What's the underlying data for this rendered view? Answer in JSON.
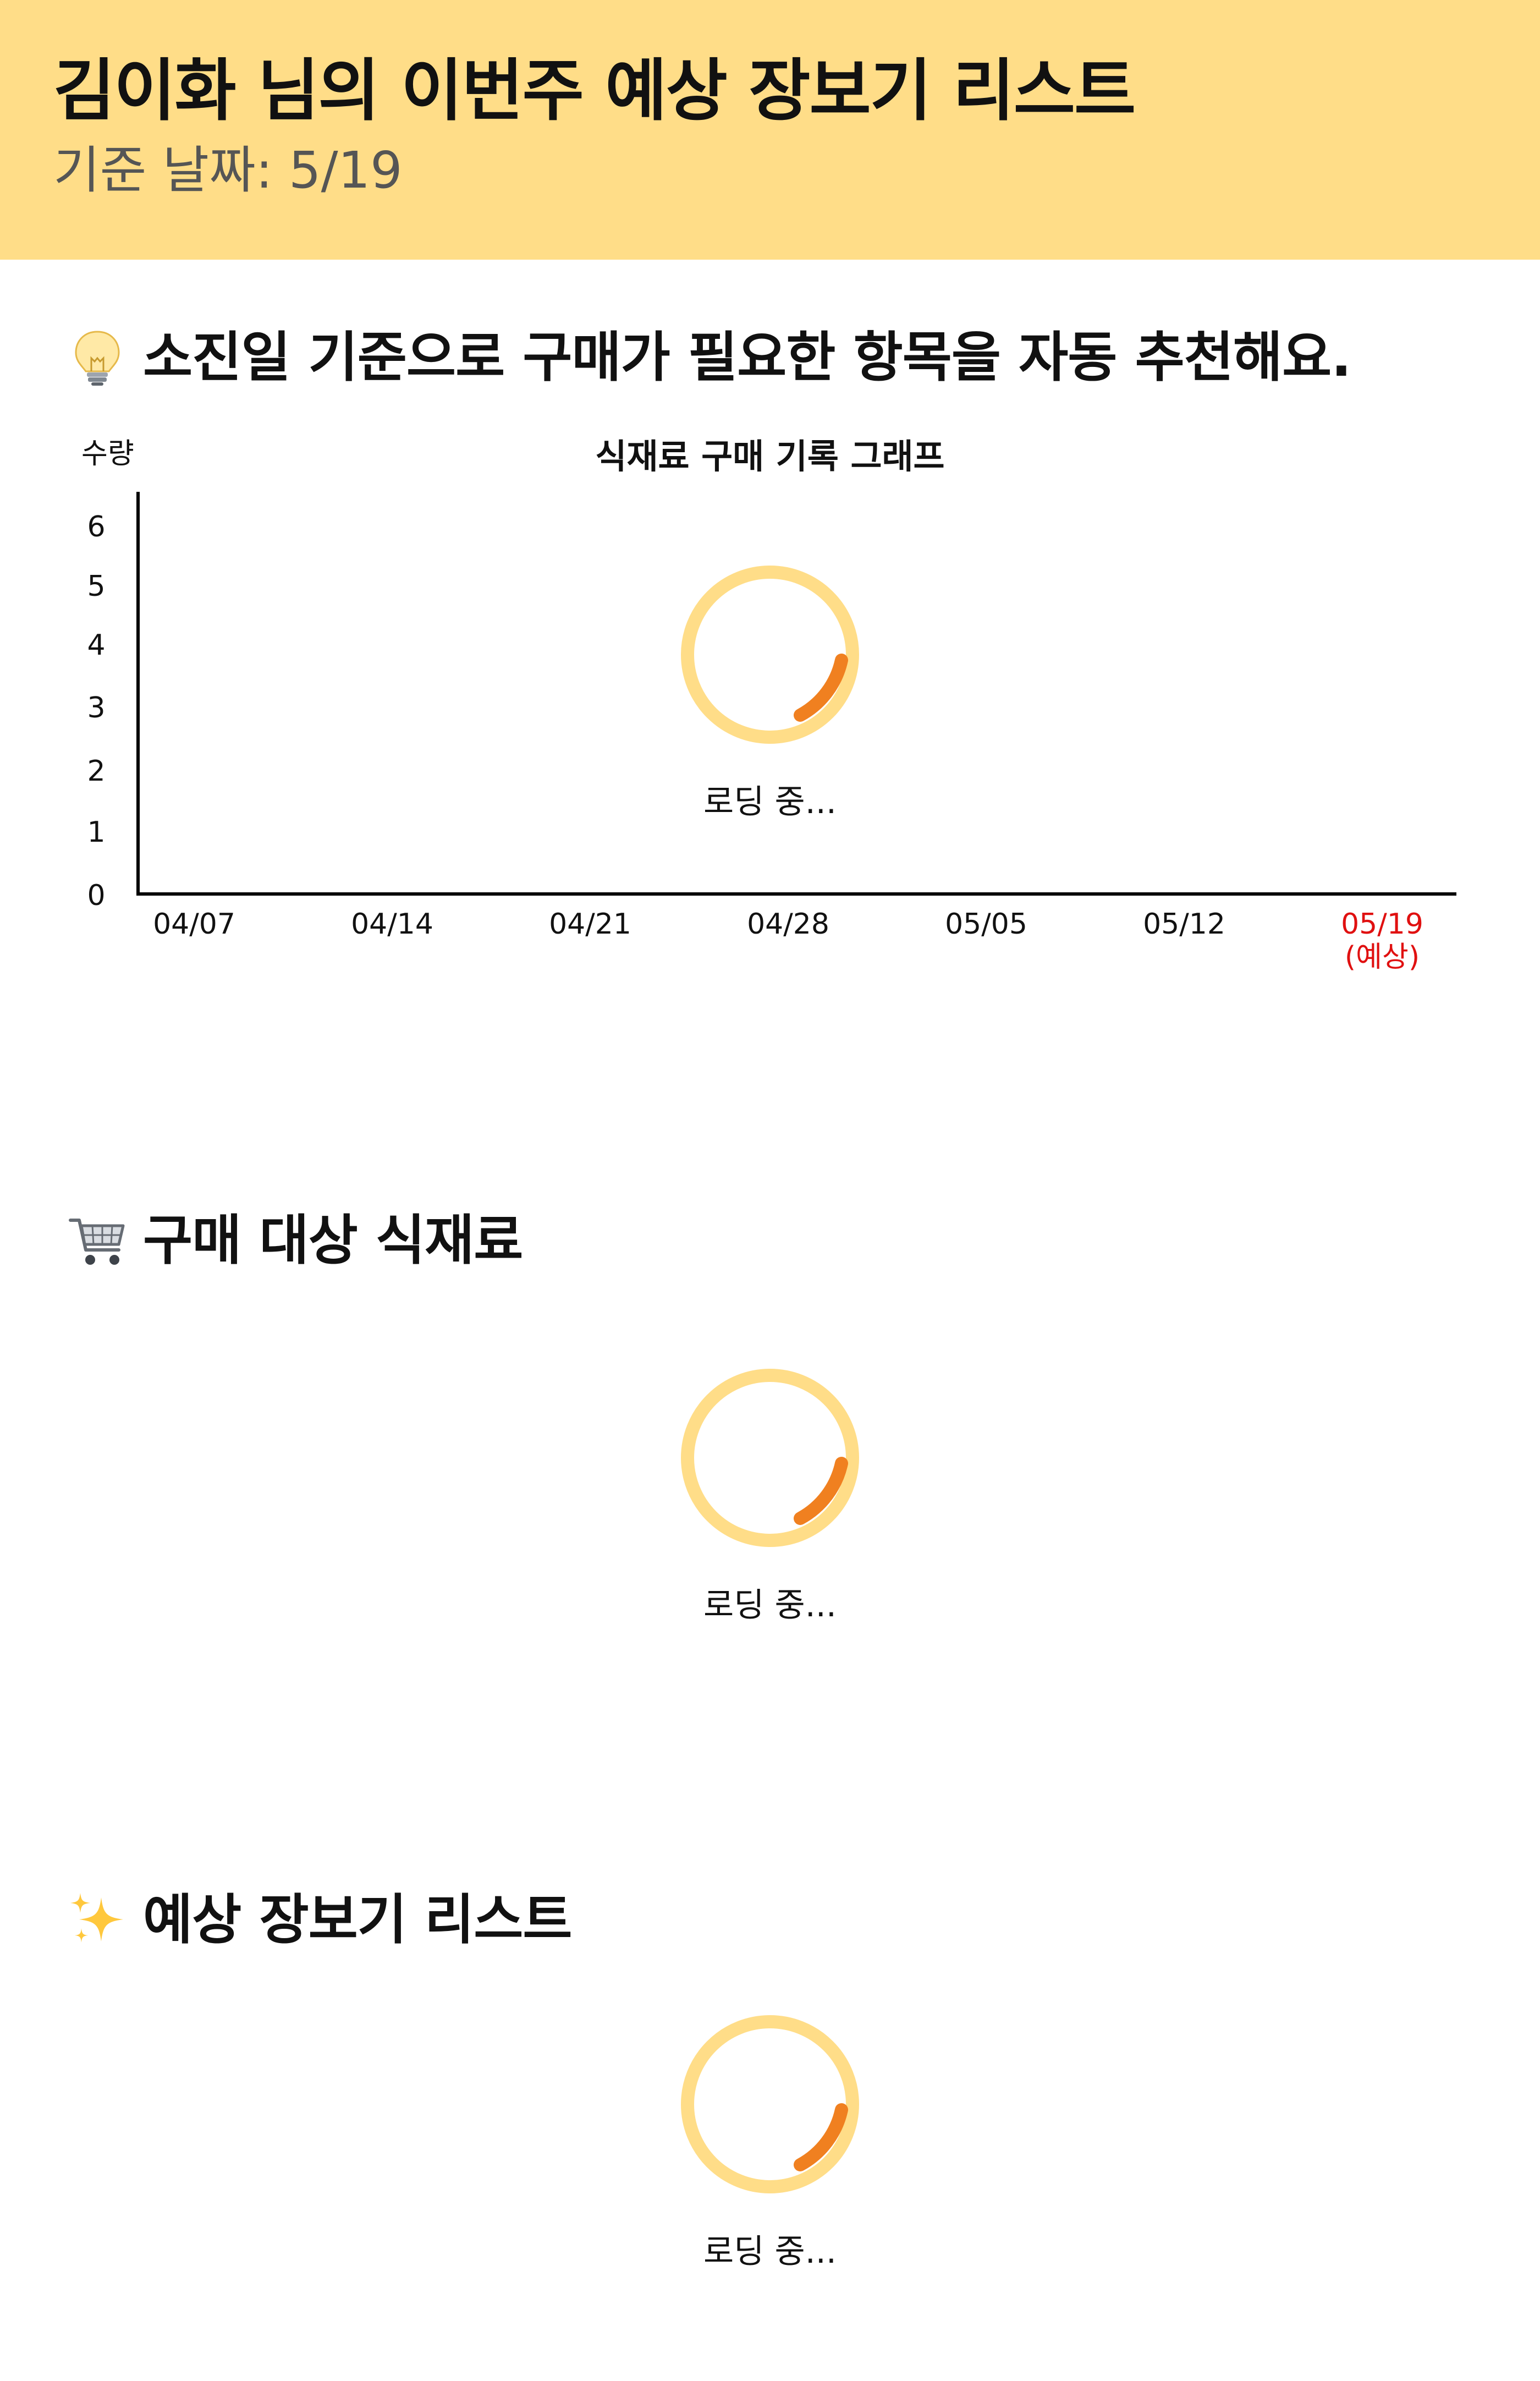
{
  "header": {
    "title": "김이화 님의 이번주 예상 장보기 리스트",
    "subtitle": "기준 날짜: 5/19"
  },
  "sections": {
    "recommend": {
      "title": "소진일 기준으로 구매가 필요한 항목을 자동 추천해요.",
      "icon": "lightbulb-icon"
    },
    "targets": {
      "title": "구매 대상 식재료",
      "icon": "shopping-cart-icon",
      "loading": "로딩 중..."
    },
    "list": {
      "title": "예상 장보기 리스트",
      "icon": "sparkles-icon",
      "loading": "로딩 중..."
    }
  },
  "chart_data": {
    "type": "line",
    "title": "식재료 구매 기록 그래프",
    "ylabel": "수량",
    "yticks": [
      "0",
      "1",
      "2",
      "3",
      "4",
      "5",
      "6"
    ],
    "categories": [
      "04/07",
      "04/14",
      "04/21",
      "04/28",
      "05/05",
      "05/12",
      "05/19"
    ],
    "predicted_label": "(예상)",
    "series": [],
    "ylim": [
      0,
      6
    ],
    "grid": false,
    "loading": "로딩 중..."
  },
  "colors": {
    "header_bg": "#FFDD88",
    "spinner_track": "#FFDD88",
    "spinner_arc": "#F08020",
    "predicted": "#E01010"
  }
}
